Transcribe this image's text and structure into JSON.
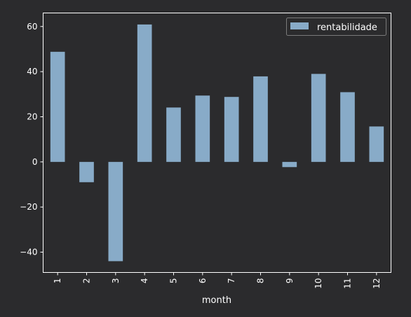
{
  "chart_data": {
    "type": "bar",
    "categories": [
      "1",
      "2",
      "3",
      "4",
      "5",
      "6",
      "7",
      "8",
      "9",
      "10",
      "11",
      "12"
    ],
    "series": [
      {
        "name": "rentabilidade",
        "values": [
          48.8,
          -9.0,
          -44.0,
          60.9,
          24.1,
          29.4,
          28.8,
          37.9,
          -2.3,
          39.0,
          30.9,
          15.7
        ]
      }
    ],
    "xlabel": "month",
    "ylabel": "",
    "ylim": [
      -49,
      66
    ],
    "yticks": [
      60,
      40,
      20,
      0,
      -20,
      -40
    ],
    "ytick_labels": [
      "60",
      "40",
      "20",
      "0",
      "−20",
      "−40"
    ],
    "grid": false,
    "legend_position": "top-right",
    "colors": {
      "bar": "#88abc8",
      "background": "#2b2b2d",
      "axes": "#ffffff",
      "legend_bg": "#2b2b2d",
      "legend_border": "#7a7a7a"
    }
  }
}
